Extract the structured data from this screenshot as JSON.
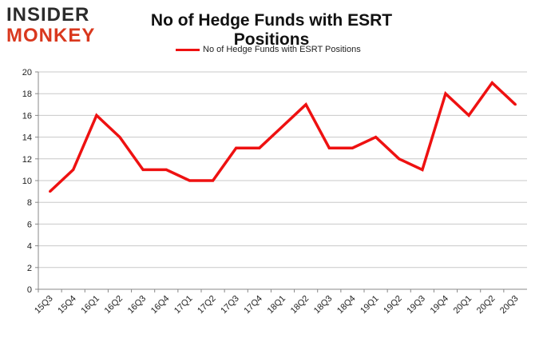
{
  "logo": {
    "line1": "INSIDER",
    "line2": "MONKEY",
    "colors": {
      "dark": "#2b2b2b",
      "accent": "#d9381e"
    }
  },
  "chart_data": {
    "type": "line",
    "title": "No of Hedge Funds with ESRT Positions",
    "xlabel": "",
    "ylabel": "",
    "categories": [
      "15Q3",
      "15Q4",
      "16Q1",
      "16Q2",
      "16Q3",
      "16Q4",
      "17Q1",
      "17Q2",
      "17Q3",
      "17Q4",
      "18Q1",
      "18Q2",
      "18Q3",
      "18Q4",
      "19Q1",
      "19Q2",
      "19Q3",
      "19Q4",
      "20Q1",
      "20Q2",
      "20Q3"
    ],
    "series": [
      {
        "name": "No of Hedge Funds with ESRT Positions",
        "color": "#ee1111",
        "values": [
          9,
          11,
          16,
          14,
          11,
          11,
          10,
          10,
          13,
          13,
          15,
          17,
          13,
          13,
          14,
          12,
          11,
          18,
          16,
          19,
          17
        ]
      }
    ],
    "ylim": [
      0,
      20
    ],
    "yticks": [
      0,
      2,
      4,
      6,
      8,
      10,
      12,
      14,
      16,
      18,
      20
    ],
    "grid": true,
    "legend_position": "top-center"
  }
}
